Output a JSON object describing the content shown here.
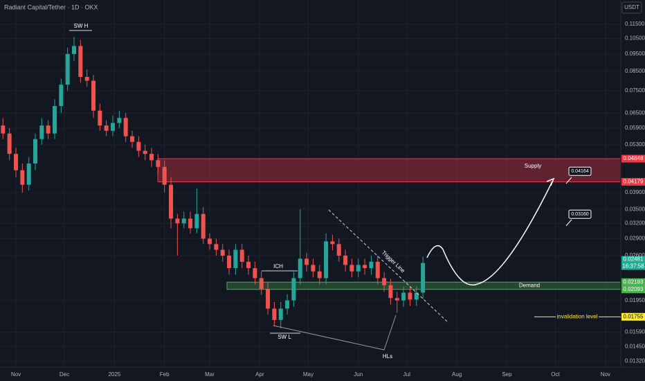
{
  "chart_data": {
    "type": "candlestick",
    "title": "Radiant Capital/Tether · 1D · OKX",
    "currency": "USDT",
    "log_scale": true,
    "grid": true,
    "ylim": [
      0.0127,
      0.1344
    ],
    "yticks": [
      {
        "value": 0.115,
        "label": "0.11500"
      },
      {
        "value": 0.105,
        "label": "0.10500"
      },
      {
        "value": 0.095,
        "label": "0.09500"
      },
      {
        "value": 0.085,
        "label": "0.08500"
      },
      {
        "value": 0.075,
        "label": "0.07500"
      },
      {
        "value": 0.065,
        "label": "0.06500"
      },
      {
        "value": 0.059,
        "label": "0.05900"
      },
      {
        "value": 0.053,
        "label": "0.05300"
      },
      {
        "value": 0.039,
        "label": "0.03900"
      },
      {
        "value": 0.035,
        "label": "0.03500"
      },
      {
        "value": 0.032,
        "label": "0.03200"
      },
      {
        "value": 0.029,
        "label": "0.02900"
      },
      {
        "value": 0.026,
        "label": "0.02600"
      },
      {
        "value": 0.0195,
        "label": "0.01950"
      },
      {
        "value": 0.0159,
        "label": "0.01590"
      },
      {
        "value": 0.0145,
        "label": "0.01450"
      },
      {
        "value": 0.0132,
        "label": "0.01320"
      }
    ],
    "xlim": [
      -9.85,
      374.5
    ],
    "xticks": [
      {
        "value": 0,
        "label": "Nov"
      },
      {
        "value": 30,
        "label": "Dec"
      },
      {
        "value": 61,
        "label": "2025"
      },
      {
        "value": 92,
        "label": "Feb"
      },
      {
        "value": 120,
        "label": "Mar"
      },
      {
        "value": 151,
        "label": "Apr"
      },
      {
        "value": 181,
        "label": "May"
      },
      {
        "value": 212,
        "label": "Jun"
      },
      {
        "value": 242,
        "label": "Jul"
      },
      {
        "value": 273,
        "label": "Aug"
      },
      {
        "value": 304,
        "label": "Sep"
      },
      {
        "value": 334,
        "label": "Oct"
      },
      {
        "value": 365,
        "label": "Nov"
      }
    ],
    "up_color": "#26a69a",
    "down_color": "#ef5350",
    "x": [
      -8,
      -4,
      0,
      4,
      8,
      12,
      16,
      20,
      24,
      28,
      32,
      36,
      40,
      44,
      48,
      52,
      56,
      60,
      64,
      68,
      72,
      76,
      80,
      84,
      88,
      92,
      96,
      100,
      104,
      108,
      112,
      116,
      120,
      124,
      128,
      132,
      136,
      140,
      144,
      148,
      152,
      156,
      160,
      164,
      168,
      172,
      176,
      180,
      184,
      188,
      192,
      196,
      200,
      204,
      208,
      212,
      216,
      220,
      224,
      228,
      232,
      236,
      240,
      244,
      248,
      252
    ],
    "open": [
      0.06,
      0.057,
      0.05,
      0.045,
      0.041,
      0.047,
      0.055,
      0.06,
      0.057,
      0.068,
      0.078,
      0.095,
      0.1,
      0.082,
      0.08,
      0.066,
      0.06,
      0.058,
      0.061,
      0.063,
      0.056,
      0.054,
      0.051,
      0.05,
      0.048,
      0.046,
      0.041,
      0.033,
      0.032,
      0.033,
      0.031,
      0.034,
      0.029,
      0.028,
      0.027,
      0.026,
      0.024,
      0.027,
      0.025,
      0.024,
      0.0225,
      0.021,
      0.0185,
      0.0172,
      0.0185,
      0.0195,
      0.0225,
      0.0255,
      0.0245,
      0.0235,
      0.0225,
      0.0285,
      0.028,
      0.026,
      0.0245,
      0.0235,
      0.0245,
      0.024,
      0.025,
      0.0225,
      0.0215,
      0.0198,
      0.0195,
      0.0205,
      0.0196,
      0.0205
    ],
    "high": [
      0.063,
      0.059,
      0.052,
      0.047,
      0.049,
      0.057,
      0.063,
      0.062,
      0.071,
      0.081,
      0.099,
      0.106,
      0.104,
      0.086,
      0.083,
      0.069,
      0.062,
      0.064,
      0.066,
      0.065,
      0.058,
      0.056,
      0.053,
      0.052,
      0.05,
      0.048,
      0.043,
      0.034,
      0.0345,
      0.0345,
      0.04,
      0.0355,
      0.03,
      0.029,
      0.028,
      0.027,
      0.028,
      0.028,
      0.026,
      0.025,
      0.0235,
      0.022,
      0.0193,
      0.0193,
      0.0203,
      0.0234,
      0.035,
      0.0265,
      0.0255,
      0.0245,
      0.03,
      0.0297,
      0.029,
      0.027,
      0.0255,
      0.0255,
      0.0255,
      0.026,
      0.026,
      0.0234,
      0.0224,
      0.0206,
      0.0213,
      0.0213,
      0.0213,
      0.0258
    ],
    "low": [
      0.055,
      0.048,
      0.043,
      0.039,
      0.0395,
      0.045,
      0.053,
      0.055,
      0.055,
      0.065,
      0.075,
      0.091,
      0.079,
      0.077,
      0.063,
      0.058,
      0.056,
      0.056,
      0.059,
      0.054,
      0.052,
      0.049,
      0.048,
      0.046,
      0.044,
      0.039,
      0.031,
      0.026,
      0.031,
      0.03,
      0.03,
      0.028,
      0.027,
      0.026,
      0.025,
      0.023,
      0.023,
      0.024,
      0.023,
      0.0216,
      0.0202,
      0.0178,
      0.0165,
      0.0163,
      0.0178,
      0.0187,
      0.0216,
      0.0235,
      0.0226,
      0.0216,
      0.0216,
      0.0269,
      0.025,
      0.0235,
      0.0226,
      0.0226,
      0.023,
      0.023,
      0.0216,
      0.0206,
      0.019,
      0.018,
      0.0187,
      0.0188,
      0.0188,
      0.0197
    ],
    "close": [
      0.057,
      0.05,
      0.045,
      0.041,
      0.047,
      0.055,
      0.06,
      0.057,
      0.068,
      0.078,
      0.095,
      0.1,
      0.082,
      0.08,
      0.066,
      0.06,
      0.058,
      0.061,
      0.063,
      0.056,
      0.054,
      0.051,
      0.05,
      0.048,
      0.046,
      0.041,
      0.033,
      0.032,
      0.033,
      0.031,
      0.034,
      0.029,
      0.028,
      0.027,
      0.026,
      0.024,
      0.027,
      0.025,
      0.024,
      0.0225,
      0.021,
      0.0185,
      0.0172,
      0.0185,
      0.0195,
      0.0225,
      0.0255,
      0.0245,
      0.0235,
      0.0225,
      0.0285,
      0.028,
      0.026,
      0.0245,
      0.0235,
      0.0245,
      0.024,
      0.025,
      0.0225,
      0.0215,
      0.0198,
      0.0195,
      0.0205,
      0.0196,
      0.0205,
      0.0248
    ],
    "last_price": 0.02481,
    "countdown": "16:37:58",
    "supply": {
      "name": "Supply",
      "top": 0.04848,
      "bottom": 0.04179
    },
    "demand": {
      "name": "Demand",
      "top": 0.02193,
      "bottom": 0.02093
    },
    "invalidation": {
      "name": "invalidation level",
      "value": 0.01755
    },
    "targets": [
      {
        "value": 0.04164,
        "label": "0.04164"
      },
      {
        "value": 0.0316,
        "label": "0.03160"
      }
    ],
    "annotations": [
      "SW H",
      "SW L",
      "ICH",
      "HLs",
      "Trigger Line"
    ]
  }
}
